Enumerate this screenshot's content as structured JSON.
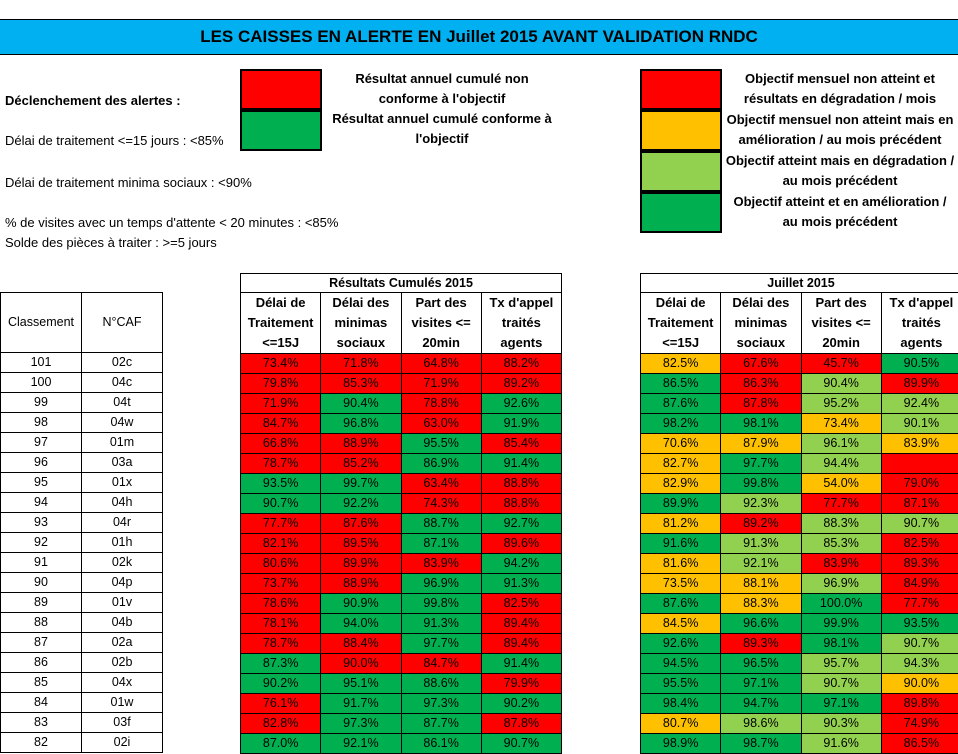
{
  "title": "LES CAISSES EN ALERTE EN Juillet 2015 AVANT VALIDATION RNDC",
  "alerts": {
    "heading": "Déclenchement des alertes :",
    "items": [
      "Délai de traitement <=15 jours : <85%",
      "Délai de traitement minima sociaux : <90%",
      "% de visites avec un temps d'attente < 20 minutes : <85%",
      "Solde des pièces à traiter : >=5 jours"
    ]
  },
  "legend_cumul": [
    {
      "color": "#ff0000",
      "lines": [
        "Résultat annuel cumulé non",
        "conforme à l'objectif"
      ]
    },
    {
      "color": "#00b050",
      "lines": [
        "Résultat annuel cumulé conforme à",
        "l'objectif"
      ]
    }
  ],
  "legend_month": [
    {
      "color": "#ff0000",
      "lines": [
        "Objectif mensuel non atteint et",
        "résultats en dégradation / mois"
      ]
    },
    {
      "color": "#ffc000",
      "lines": [
        "Objectif mensuel non atteint mais en",
        "amélioration / au mois précédent"
      ]
    },
    {
      "color": "#92d050",
      "lines": [
        "Objectif atteint mais en dégradation /",
        "au mois précédent"
      ]
    },
    {
      "color": "#00b050",
      "lines": [
        "Objectif atteint et en amélioration /",
        "au mois précédent"
      ]
    }
  ],
  "rank_table": {
    "headers": [
      "Classement",
      "N°CAF"
    ],
    "rows": [
      [
        "101",
        "02c"
      ],
      [
        "100",
        "04c"
      ],
      [
        "99",
        "04t"
      ],
      [
        "98",
        "04w"
      ],
      [
        "97",
        "01m"
      ],
      [
        "96",
        "03a"
      ],
      [
        "95",
        "01x"
      ],
      [
        "94",
        "04h"
      ],
      [
        "93",
        "04r"
      ],
      [
        "92",
        "01h"
      ],
      [
        "91",
        "02k"
      ],
      [
        "90",
        "04p"
      ],
      [
        "89",
        "01v"
      ],
      [
        "88",
        "04b"
      ],
      [
        "87",
        "02a"
      ],
      [
        "86",
        "02b"
      ],
      [
        "85",
        "04x"
      ],
      [
        "84",
        "01w"
      ],
      [
        "83",
        "03f"
      ],
      [
        "82",
        "02i"
      ]
    ]
  },
  "cumul_table": {
    "group_title": "Résultats Cumulés 2015",
    "headers": [
      [
        "Délai de",
        "Traitement",
        "<=15J"
      ],
      [
        "Délai des",
        "minimas",
        "sociaux"
      ],
      [
        "Part des",
        "visites <=",
        "20min"
      ],
      [
        "Tx d'appel",
        "traités",
        "agents"
      ]
    ],
    "rows": [
      [
        [
          "73.4%",
          "r"
        ],
        [
          "71.8%",
          "r"
        ],
        [
          "64.8%",
          "r"
        ],
        [
          "88.2%",
          "r"
        ]
      ],
      [
        [
          "79.8%",
          "r"
        ],
        [
          "85.3%",
          "r"
        ],
        [
          "71.9%",
          "r"
        ],
        [
          "89.2%",
          "r"
        ]
      ],
      [
        [
          "71.9%",
          "r"
        ],
        [
          "90.4%",
          "g"
        ],
        [
          "78.8%",
          "r"
        ],
        [
          "92.6%",
          "g"
        ]
      ],
      [
        [
          "84.7%",
          "r"
        ],
        [
          "96.8%",
          "g"
        ],
        [
          "63.0%",
          "r"
        ],
        [
          "91.9%",
          "g"
        ]
      ],
      [
        [
          "66.8%",
          "r"
        ],
        [
          "88.9%",
          "r"
        ],
        [
          "95.5%",
          "g"
        ],
        [
          "85.4%",
          "r"
        ]
      ],
      [
        [
          "78.7%",
          "r"
        ],
        [
          "85.2%",
          "r"
        ],
        [
          "86.9%",
          "g"
        ],
        [
          "91.4%",
          "g"
        ]
      ],
      [
        [
          "93.5%",
          "g"
        ],
        [
          "99.7%",
          "g"
        ],
        [
          "63.4%",
          "r"
        ],
        [
          "88.8%",
          "r"
        ]
      ],
      [
        [
          "90.7%",
          "g"
        ],
        [
          "92.2%",
          "g"
        ],
        [
          "74.3%",
          "r"
        ],
        [
          "88.8%",
          "r"
        ]
      ],
      [
        [
          "77.7%",
          "r"
        ],
        [
          "87.6%",
          "r"
        ],
        [
          "88.7%",
          "g"
        ],
        [
          "92.7%",
          "g"
        ]
      ],
      [
        [
          "82.1%",
          "r"
        ],
        [
          "89.5%",
          "r"
        ],
        [
          "87.1%",
          "g"
        ],
        [
          "89.6%",
          "r"
        ]
      ],
      [
        [
          "80.6%",
          "r"
        ],
        [
          "89.9%",
          "r"
        ],
        [
          "83.9%",
          "r"
        ],
        [
          "94.2%",
          "g"
        ]
      ],
      [
        [
          "73.7%",
          "r"
        ],
        [
          "88.9%",
          "r"
        ],
        [
          "96.9%",
          "g"
        ],
        [
          "91.3%",
          "g"
        ]
      ],
      [
        [
          "78.6%",
          "r"
        ],
        [
          "90.9%",
          "g"
        ],
        [
          "99.8%",
          "g"
        ],
        [
          "82.5%",
          "r"
        ]
      ],
      [
        [
          "78.1%",
          "r"
        ],
        [
          "94.0%",
          "g"
        ],
        [
          "91.3%",
          "g"
        ],
        [
          "89.4%",
          "r"
        ]
      ],
      [
        [
          "78.7%",
          "r"
        ],
        [
          "88.4%",
          "r"
        ],
        [
          "97.7%",
          "g"
        ],
        [
          "89.4%",
          "r"
        ]
      ],
      [
        [
          "87.3%",
          "g"
        ],
        [
          "90.0%",
          "r"
        ],
        [
          "84.7%",
          "r"
        ],
        [
          "91.4%",
          "g"
        ]
      ],
      [
        [
          "90.2%",
          "g"
        ],
        [
          "95.1%",
          "g"
        ],
        [
          "88.6%",
          "g"
        ],
        [
          "79.9%",
          "r"
        ]
      ],
      [
        [
          "76.1%",
          "r"
        ],
        [
          "91.7%",
          "g"
        ],
        [
          "97.3%",
          "g"
        ],
        [
          "90.2%",
          "g"
        ]
      ],
      [
        [
          "82.8%",
          "r"
        ],
        [
          "97.3%",
          "g"
        ],
        [
          "87.7%",
          "g"
        ],
        [
          "87.8%",
          "r"
        ]
      ],
      [
        [
          "87.0%",
          "g"
        ],
        [
          "92.1%",
          "g"
        ],
        [
          "86.1%",
          "g"
        ],
        [
          "90.7%",
          "g"
        ]
      ]
    ]
  },
  "month_table": {
    "group_title": "Juillet 2015",
    "headers": [
      [
        "Délai de",
        "Traitement",
        "<=15J"
      ],
      [
        "Délai des",
        "minimas",
        "sociaux"
      ],
      [
        "Part des",
        "visites <=",
        "20min"
      ],
      [
        "Tx d'appel",
        "traités",
        "agents"
      ]
    ],
    "rows": [
      [
        [
          "82.5%",
          "o"
        ],
        [
          "67.6%",
          "r"
        ],
        [
          "45.7%",
          "r"
        ],
        [
          "90.5%",
          "g"
        ]
      ],
      [
        [
          "86.5%",
          "g"
        ],
        [
          "86.3%",
          "r"
        ],
        [
          "90.4%",
          "l"
        ],
        [
          "89.9%",
          "r"
        ]
      ],
      [
        [
          "87.6%",
          "g"
        ],
        [
          "87.8%",
          "r"
        ],
        [
          "95.2%",
          "l"
        ],
        [
          "92.4%",
          "l"
        ]
      ],
      [
        [
          "98.2%",
          "g"
        ],
        [
          "98.1%",
          "g"
        ],
        [
          "73.4%",
          "o"
        ],
        [
          "90.1%",
          "l"
        ]
      ],
      [
        [
          "70.6%",
          "o"
        ],
        [
          "87.9%",
          "o"
        ],
        [
          "96.1%",
          "l"
        ],
        [
          "83.9%",
          "o"
        ]
      ],
      [
        [
          "82.7%",
          "o"
        ],
        [
          "97.7%",
          "g"
        ],
        [
          "94.4%",
          "l"
        ],
        [
          "",
          "r"
        ]
      ],
      [
        [
          "82.9%",
          "o"
        ],
        [
          "99.8%",
          "g"
        ],
        [
          "54.0%",
          "o"
        ],
        [
          "79.0%",
          "r"
        ]
      ],
      [
        [
          "89.9%",
          "g"
        ],
        [
          "92.3%",
          "l"
        ],
        [
          "77.7%",
          "r"
        ],
        [
          "87.1%",
          "r"
        ]
      ],
      [
        [
          "81.2%",
          "o"
        ],
        [
          "89.2%",
          "r"
        ],
        [
          "88.3%",
          "l"
        ],
        [
          "90.7%",
          "l"
        ]
      ],
      [
        [
          "91.6%",
          "g"
        ],
        [
          "91.3%",
          "l"
        ],
        [
          "85.3%",
          "l"
        ],
        [
          "82.5%",
          "r"
        ]
      ],
      [
        [
          "81.6%",
          "o"
        ],
        [
          "92.1%",
          "l"
        ],
        [
          "83.9%",
          "r"
        ],
        [
          "89.3%",
          "r"
        ]
      ],
      [
        [
          "73.5%",
          "o"
        ],
        [
          "88.1%",
          "o"
        ],
        [
          "96.9%",
          "l"
        ],
        [
          "84.9%",
          "r"
        ]
      ],
      [
        [
          "87.6%",
          "g"
        ],
        [
          "88.3%",
          "o"
        ],
        [
          "100.0%",
          "g"
        ],
        [
          "77.7%",
          "r"
        ]
      ],
      [
        [
          "84.5%",
          "o"
        ],
        [
          "96.6%",
          "g"
        ],
        [
          "99.9%",
          "g"
        ],
        [
          "93.5%",
          "g"
        ]
      ],
      [
        [
          "92.6%",
          "g"
        ],
        [
          "89.3%",
          "r"
        ],
        [
          "98.1%",
          "g"
        ],
        [
          "90.7%",
          "l"
        ]
      ],
      [
        [
          "94.5%",
          "g"
        ],
        [
          "96.5%",
          "g"
        ],
        [
          "95.7%",
          "l"
        ],
        [
          "94.3%",
          "l"
        ]
      ],
      [
        [
          "95.5%",
          "g"
        ],
        [
          "97.1%",
          "g"
        ],
        [
          "90.7%",
          "l"
        ],
        [
          "90.0%",
          "o"
        ]
      ],
      [
        [
          "98.4%",
          "g"
        ],
        [
          "94.7%",
          "g"
        ],
        [
          "97.1%",
          "g"
        ],
        [
          "89.8%",
          "r"
        ]
      ],
      [
        [
          "80.7%",
          "o"
        ],
        [
          "98.6%",
          "l"
        ],
        [
          "90.3%",
          "l"
        ],
        [
          "74.9%",
          "r"
        ]
      ],
      [
        [
          "98.9%",
          "g"
        ],
        [
          "98.7%",
          "g"
        ],
        [
          "91.6%",
          "l"
        ],
        [
          "86.5%",
          "r"
        ]
      ]
    ]
  }
}
